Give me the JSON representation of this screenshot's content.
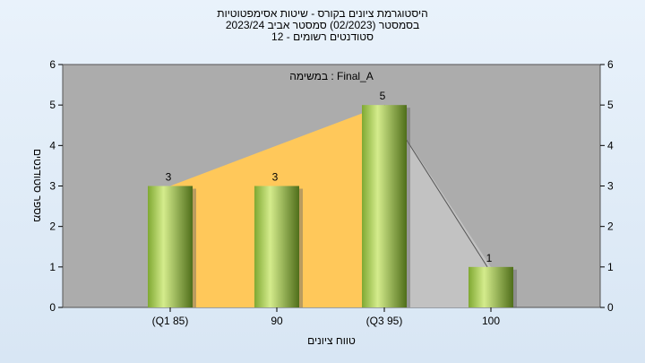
{
  "titles": [
    "היסטוגרמת ציונים בקורס - שיטות אסימפטוטיות",
    "בסמסטר  (02/2023)  סמסטר אביב 2023/24",
    "סטודנטים רשומים - 12"
  ],
  "colors": {
    "bar": "#9ec74a",
    "area": "#ffc85a",
    "area_gray": "#c2c2c2",
    "plot_bg": "#acacac"
  },
  "chart_data": {
    "type": "bar",
    "title": "היסטוגרמת ציונים בקורס - שיטות אסימפטוטיות",
    "subtitle": [
      "בסמסטר  (02/2023)  סמסטר אביב 2023/24",
      "סטודנטים רשומים - 12"
    ],
    "annotation": "במשימה : Final_A",
    "xlabel": "טווח ציונים",
    "ylabel": "מספר סטודנטים",
    "categories": [
      "(Q1 85)",
      "90",
      "(Q3 95)",
      "100"
    ],
    "values": [
      3,
      3,
      5,
      1
    ],
    "ylim": [
      0,
      6
    ],
    "yticks": [
      "0",
      "1",
      "2",
      "3",
      "4",
      "5",
      "6"
    ],
    "secondary_axis": true,
    "grid": false,
    "area_series": {
      "values": [
        3,
        4,
        5,
        0
      ]
    }
  }
}
